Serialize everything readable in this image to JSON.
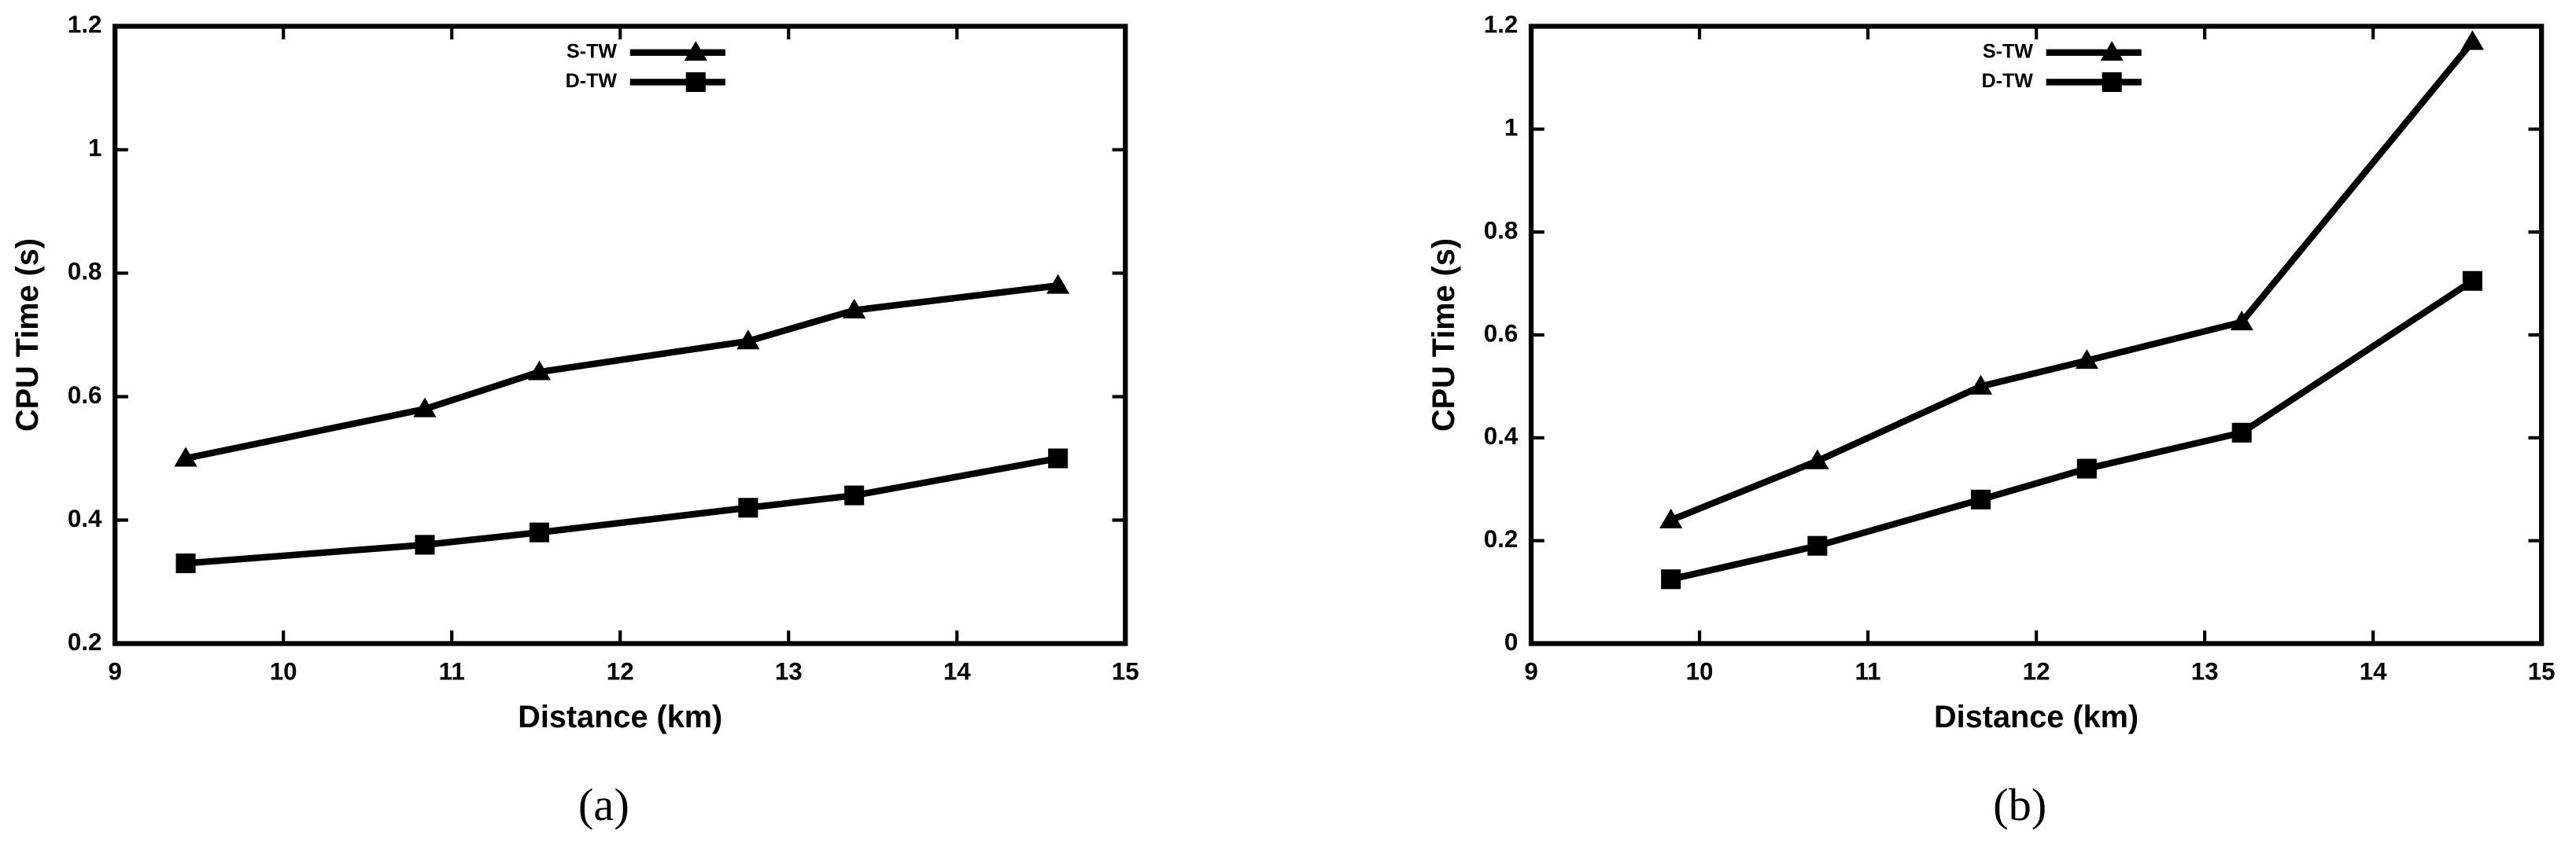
{
  "chart_data": [
    {
      "type": "line",
      "caption": "(a)",
      "xlabel": "Distance (km)",
      "ylabel": "CPU Time (s)",
      "xlim": [
        9,
        15
      ],
      "xticks": [
        9,
        10,
        11,
        12,
        13,
        14,
        15
      ],
      "ylim": [
        0.2,
        1.2
      ],
      "yticks": [
        0.2,
        0.4,
        0.6,
        0.8,
        1,
        1.2
      ],
      "legend": "top",
      "series": [
        {
          "name": "S-TW",
          "color": "#000000",
          "marker": "triangle",
          "x": [
            9.42,
            10.84,
            11.52,
            12.76,
            13.39,
            14.6
          ],
          "values": [
            0.5,
            0.58,
            0.64,
            0.69,
            0.74,
            0.78
          ]
        },
        {
          "name": "D-TW",
          "color": "#000000",
          "marker": "square",
          "x": [
            9.42,
            10.84,
            11.52,
            12.76,
            13.39,
            14.6
          ],
          "values": [
            0.33,
            0.36,
            0.38,
            0.42,
            0.44,
            0.5
          ]
        }
      ]
    },
    {
      "type": "line",
      "caption": "(b)",
      "xlabel": "Distance (km)",
      "ylabel": "CPU Time (s)",
      "xlim": [
        9,
        15
      ],
      "xticks": [
        9,
        10,
        11,
        12,
        13,
        14,
        15
      ],
      "ylim": [
        0,
        1.2
      ],
      "yticks": [
        0,
        0.2,
        0.4,
        0.6,
        0.8,
        1,
        1.2
      ],
      "legend": "top",
      "series": [
        {
          "name": "S-TW",
          "color": "#000000",
          "marker": "triangle",
          "x": [
            9.83,
            10.7,
            11.67,
            12.3,
            13.22,
            14.59
          ],
          "values": [
            0.24,
            0.355,
            0.5,
            0.55,
            0.625,
            1.17
          ]
        },
        {
          "name": "D-TW",
          "color": "#000000",
          "marker": "square",
          "x": [
            9.83,
            10.7,
            11.67,
            12.3,
            13.22,
            14.59
          ],
          "values": [
            0.125,
            0.19,
            0.28,
            0.34,
            0.41,
            0.705
          ]
        }
      ]
    }
  ]
}
